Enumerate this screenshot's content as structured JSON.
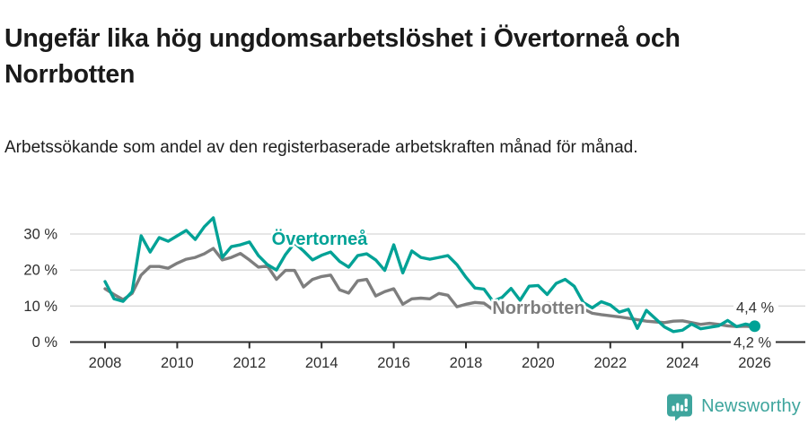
{
  "header": {
    "title": "Ungefär lika hög ungdomsarbetslöshet i Övertorneå och Norrbotten",
    "subtitle": "Arbetssökande som andel av den registerbaserade arbetskraften månad för månad."
  },
  "chart_data": {
    "type": "line",
    "unit": "%",
    "grid": "horizontal",
    "legend_position": "inline-labels",
    "y_ticks": [
      0,
      10,
      20,
      30
    ],
    "y_tick_labels": [
      "0 %",
      "10 %",
      "20 %",
      "30 %"
    ],
    "x_tick_years": [
      2008,
      2010,
      2012,
      2014,
      2016,
      2018,
      2020,
      2022,
      2024,
      2026
    ],
    "x_tick_labels": [
      "2008",
      "2010",
      "2012",
      "2014",
      "2016",
      "2018",
      "2020",
      "2022",
      "2024",
      "2026"
    ],
    "xlim": [
      2007.1,
      2027.4
    ],
    "ylim": [
      0,
      38
    ],
    "x": [
      2008,
      2008.25,
      2008.5,
      2008.75,
      2009,
      2009.25,
      2009.5,
      2009.75,
      2010,
      2010.25,
      2010.5,
      2010.75,
      2011,
      2011.25,
      2011.5,
      2011.75,
      2012,
      2012.25,
      2012.5,
      2012.75,
      2013,
      2013.25,
      2013.5,
      2013.75,
      2014,
      2014.25,
      2014.5,
      2014.75,
      2015,
      2015.25,
      2015.5,
      2015.75,
      2016,
      2016.25,
      2016.5,
      2016.75,
      2017,
      2017.25,
      2017.5,
      2017.75,
      2018,
      2018.25,
      2018.5,
      2018.75,
      2019,
      2019.25,
      2019.5,
      2019.75,
      2020,
      2020.25,
      2020.5,
      2020.75,
      2021,
      2021.25,
      2021.5,
      2021.75,
      2022,
      2022.25,
      2022.5,
      2022.75,
      2023,
      2023.25,
      2023.5,
      2023.75,
      2024,
      2024.25,
      2024.5,
      2024.75,
      2025,
      2025.25,
      2025.5,
      2025.75,
      2026
    ],
    "series": [
      {
        "name": "Övertorneå",
        "color": "#00a296",
        "end_value_label": "4,4 %",
        "end_marker": true,
        "values": [
          16.8,
          12.0,
          11.3,
          14.0,
          29.5,
          25.0,
          29.0,
          28.0,
          29.5,
          31.0,
          28.5,
          32.0,
          34.5,
          23.5,
          26.5,
          27.0,
          27.8,
          24.0,
          21.5,
          20.0,
          24.3,
          27.5,
          25.3,
          22.8,
          24.1,
          25.0,
          22.4,
          20.8,
          24.0,
          24.5,
          22.8,
          19.9,
          27.0,
          19.2,
          25.3,
          23.5,
          23.0,
          23.5,
          24.0,
          21.5,
          18.0,
          15.0,
          14.7,
          11.3,
          12.4,
          14.9,
          11.6,
          15.5,
          15.7,
          13.2,
          16.3,
          17.4,
          15.5,
          11.0,
          9.5,
          11.2,
          10.3,
          8.3,
          9.1,
          3.8,
          8.8,
          6.5,
          4.2,
          2.9,
          3.3,
          5.0,
          3.7,
          4.1,
          4.5,
          6.0,
          4.3,
          5.0,
          4.4
        ]
      },
      {
        "name": "Norrbotten",
        "color": "#7e7e7e",
        "end_value_label": "4,2 %",
        "end_marker": false,
        "values": [
          14.8,
          13.2,
          11.8,
          13.5,
          18.6,
          21.0,
          21.0,
          20.5,
          21.9,
          23.0,
          23.5,
          24.5,
          26.0,
          22.8,
          23.5,
          24.6,
          22.8,
          20.8,
          21.1,
          17.4,
          19.9,
          19.9,
          15.3,
          17.4,
          18.2,
          18.6,
          14.5,
          13.6,
          17.0,
          17.4,
          12.8,
          14.0,
          14.8,
          10.5,
          12.0,
          12.2,
          12.0,
          13.5,
          13.0,
          9.8,
          10.5,
          11.0,
          10.8,
          9.0,
          9.5,
          9.0,
          8.5,
          8.3,
          8.8,
          10.8,
          10.5,
          10.0,
          9.8,
          9.2,
          8.0,
          7.6,
          7.3,
          7.0,
          6.6,
          6.2,
          5.8,
          5.6,
          5.4,
          5.8,
          5.9,
          5.4,
          4.9,
          5.2,
          4.9,
          4.5,
          4.3,
          4.4,
          4.2
        ]
      }
    ],
    "colors": {
      "grid": "#d8d8d8",
      "axis": "#2e2e2e",
      "tick_text": "#2e2e2e",
      "end_label_text": "#333333"
    }
  },
  "footer": {
    "brand": "Newsworthy",
    "brand_color": "#3ea59d",
    "logo_icon": "newsworthy-speech-bubble-barchart"
  }
}
